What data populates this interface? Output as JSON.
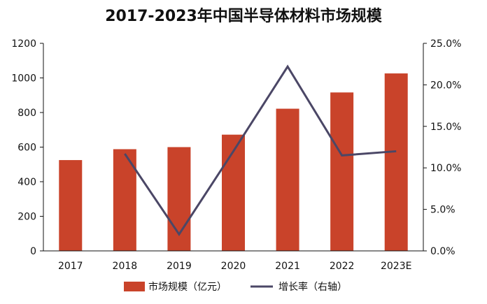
{
  "chart_data": {
    "type": "bar",
    "title": "2017-2023年中国半导体材料市场规模",
    "categories": [
      "2017",
      "2018",
      "2019",
      "2020",
      "2021",
      "2022",
      "2023E"
    ],
    "series": [
      {
        "name": "市场规模（亿元）",
        "type": "bar",
        "axis": "left",
        "color": "#c9432a",
        "values": [
          525,
          588,
          600,
          672,
          822,
          916,
          1026
        ]
      },
      {
        "name": "增长率（右轴）",
        "type": "line",
        "axis": "right",
        "color": "#4b4766",
        "values": [
          null,
          11.7,
          2.0,
          12.0,
          22.2,
          11.5,
          12.0
        ]
      }
    ],
    "left_axis": {
      "min": 0,
      "max": 1200,
      "ticks": [
        "0",
        "200",
        "400",
        "600",
        "800",
        "1000",
        "1200"
      ]
    },
    "right_axis": {
      "min": 0,
      "max": 25,
      "ticks": [
        "0.0%",
        "5.0%",
        "10.0%",
        "15.0%",
        "20.0%",
        "25.0%"
      ]
    },
    "grid": false,
    "legend_position": "bottom"
  }
}
